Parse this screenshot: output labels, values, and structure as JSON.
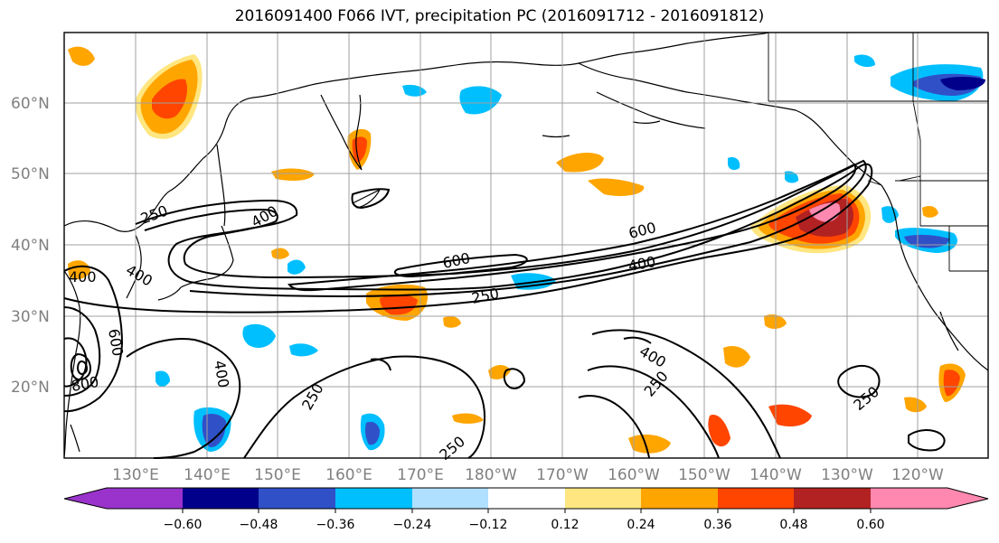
{
  "title": "2016091400 F066 IVT, precipitation PC (2016091712 - 2016091812)",
  "lat_labels": [
    "60°N",
    "50°N",
    "40°N",
    "30°N",
    "20°N"
  ],
  "lon_labels": [
    "130°E",
    "140°E",
    "150°E",
    "160°E",
    "170°E",
    "180°W",
    "170°W",
    "160°W",
    "150°W",
    "140°W",
    "130°W",
    "120°W"
  ],
  "contour_labels": [
    "250",
    "400",
    "400",
    "600",
    "800",
    "400",
    "250",
    "250",
    "600",
    "400",
    "250",
    "600",
    "400",
    "250",
    "400",
    "250"
  ],
  "colorbar": {
    "tick_labels": [
      "−0.60",
      "−0.48",
      "−0.36",
      "−0.24",
      "−0.12",
      "0.12",
      "0.24",
      "0.36",
      "0.48",
      "0.60"
    ],
    "colors": [
      "#9a33cc",
      "#00008b",
      "#3050c8",
      "#00bfff",
      "#b0e0ff",
      "#ffffff",
      "#ffe680",
      "#ffa500",
      "#ff4500",
      "#b22222",
      "#ff88b0"
    ]
  },
  "colors": {
    "land_border": "#000000",
    "grid": "#a0a0a0",
    "contour": "#000000"
  }
}
